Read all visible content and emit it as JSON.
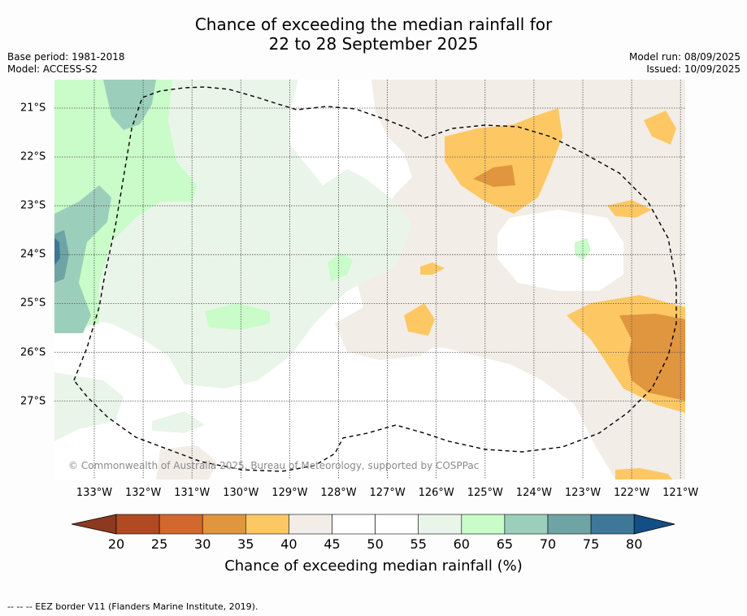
{
  "title_line1": "Chance of exceeding the median rainfall for",
  "title_line2": "22 to 28 September 2025",
  "base_period": "Base period: 1981-2018",
  "model": "Model: ACCESS-S2",
  "model_run": "Model run: 08/09/2025",
  "issued": "Issued: 10/09/2025",
  "copyright": "© Commonwealth of Australia 2025, Bureau of Meteorology, supported by COSPPac",
  "longitudes": [
    "133°W",
    "132°W",
    "131°W",
    "130°W",
    "129°W",
    "128°W",
    "127°W",
    "126°W",
    "125°W",
    "124°W",
    "123°W",
    "122°W",
    "121°W"
  ],
  "latitudes": [
    "21°S",
    "22°S",
    "23°S",
    "24°S",
    "25°S",
    "26°S",
    "27°S"
  ],
  "colorbar": {
    "label": "Chance of exceeding median rainfall (%)",
    "ticks": [
      "20",
      "25",
      "30",
      "35",
      "40",
      "45",
      "50",
      "55",
      "60",
      "65",
      "70",
      "75",
      "80"
    ],
    "colors": [
      "#8b3a1f",
      "#b04a22",
      "#d0682f",
      "#e0953f",
      "#fdc864",
      "#f2ede7",
      "#ffffff",
      "#ffffff",
      "#eaf5ea",
      "#c9fcc8",
      "#9ccfbb",
      "#6fa4a4",
      "#3e7899",
      "#124f86"
    ]
  },
  "footnote": "--  --  -- EEZ border V11 (Flanders Marine Institute, 2019)."
}
